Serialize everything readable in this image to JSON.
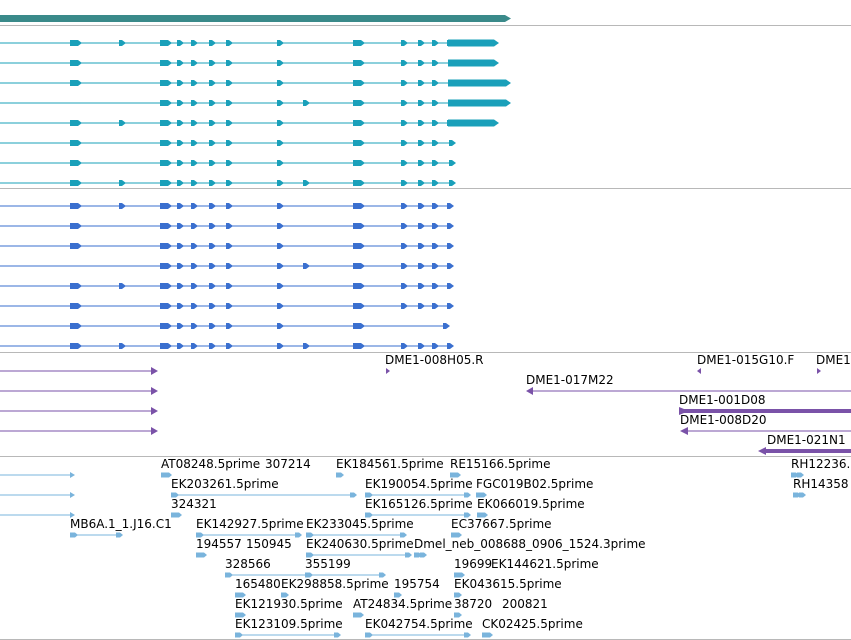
{
  "colors": {
    "gene_bar": "#3a8a8a",
    "transcript_teal": "#1aa0ba",
    "transcript_blue": "#3a6fcf",
    "clone_purple": "#7a52a8",
    "est_lightblue": "#7ab4dc",
    "divider": "#b8b8b8"
  },
  "icons": {
    "exon_marker": "strand-arrow-icon"
  },
  "clone_labels": [
    "DME1-008H05.R",
    "DME1-015G10.F",
    "DME1",
    "DME1-017M22",
    "DME1-001D08",
    "DME1-008D20",
    "DME1-021N1"
  ],
  "est_labels": [
    "AT08248.5prime",
    "307214",
    "EK184561.5prime",
    "RE15166.5prime",
    "RH12236.",
    "EK203261.5prime",
    "EK190054.5prime",
    "FGC019B02.5prime",
    "RH14358",
    "324321",
    "EK165126.5prime",
    "EK066019.5prime",
    "MB6A.1_1.J16.C1",
    "EK142927.5prime",
    "EK233045.5prime",
    "EC37667.5prime",
    "194557",
    "150945",
    "EK240630.5prime",
    "Dmel_neb_008688_0906_1524.3prime",
    "328566",
    "355199",
    "19699",
    "EK144621.5prime",
    "165480",
    "EK298858.5prime",
    "195754",
    "EK043615.5prime",
    "EK121930.5prime",
    "AT24834.5prime",
    "38720",
    "200821",
    "EK123109.5prime",
    "EK042754.5prime",
    "CK02425.5prime"
  ]
}
